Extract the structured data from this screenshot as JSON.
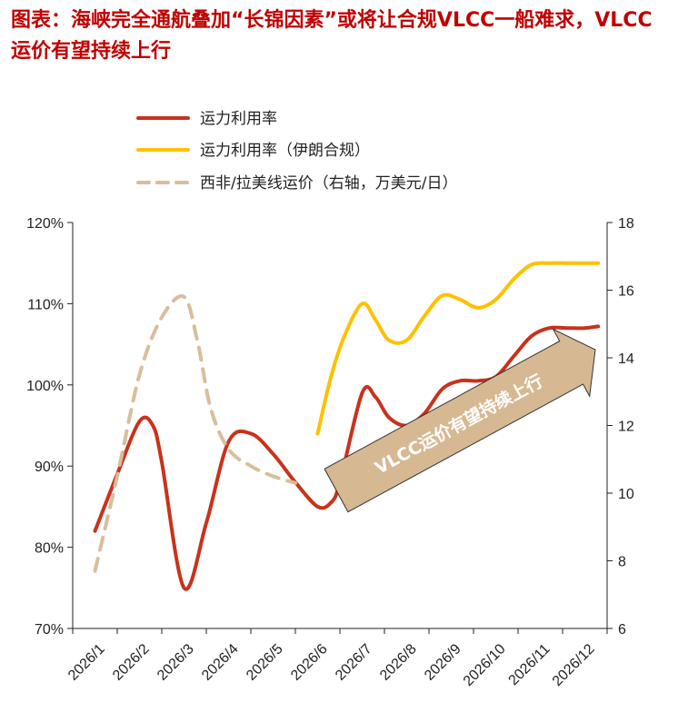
{
  "title": "图表：海峡完全通航叠加“长锦因素”或将让合规VLCC一船难求，VLCC运价有望持续上行",
  "colors": {
    "title": "#c00000",
    "series_util": "#c8321c",
    "series_iran": "#ffc000",
    "series_rate": "#d9bd9c",
    "arrow_fill": "#d6b892",
    "arrow_stroke": "#333333"
  },
  "chart_data": {
    "type": "line",
    "categories": [
      "2026/1",
      "2026/2",
      "2026/3",
      "2026/4",
      "2026/5",
      "2026/6",
      "2026/7",
      "2026/8",
      "2026/9",
      "2026/10",
      "2026/11",
      "2026/12"
    ],
    "y_left": {
      "ticks": [
        "70%",
        "80%",
        "90%",
        "100%",
        "110%",
        "120%"
      ],
      "lim": [
        70,
        120
      ],
      "unit": "%"
    },
    "y_right": {
      "ticks": [
        "6",
        "8",
        "10",
        "12",
        "14",
        "16",
        "18"
      ],
      "lim": [
        6,
        18
      ]
    },
    "series": [
      {
        "name": "运力利用率",
        "axis": "left",
        "style": "solid",
        "color": "#c8321c",
        "x": [
          0.0,
          0.5,
          1.0,
          1.3,
          1.5,
          2.0,
          2.5,
          3.0,
          3.5,
          4.0,
          4.5,
          5.0,
          5.3,
          5.5,
          6.0,
          6.3,
          6.6,
          7.0,
          7.4,
          7.8,
          8.2,
          8.6,
          9.0,
          9.4,
          9.8,
          10.2,
          10.6,
          11.0,
          11.3
        ],
        "values": [
          82,
          89,
          95.5,
          95,
          90.5,
          75,
          83,
          93,
          94,
          91.5,
          88,
          85,
          85.5,
          88,
          99,
          98.5,
          96,
          95,
          96.5,
          99.5,
          100.5,
          100.5,
          101,
          103.5,
          106,
          107,
          107,
          107,
          107.2
        ]
      },
      {
        "name": "运力利用率（伊朗合规）",
        "axis": "left",
        "style": "solid",
        "color": "#ffc000",
        "x": [
          5.0,
          5.3,
          5.6,
          6.0,
          6.3,
          6.6,
          7.0,
          7.4,
          7.8,
          8.2,
          8.6,
          9.0,
          9.4,
          9.8,
          10.2,
          10.6,
          11.0,
          11.3
        ],
        "values": [
          94,
          101,
          106,
          110,
          108,
          105.5,
          105.5,
          108.5,
          111,
          110.5,
          109.5,
          110.5,
          113,
          114.8,
          115,
          115,
          115,
          115
        ]
      },
      {
        "name": "西非/拉美线运价（右轴，万美元/日）",
        "axis": "right",
        "style": "dashed",
        "color": "#d9bd9c",
        "x": [
          0.0,
          0.5,
          1.0,
          1.5,
          2.0,
          2.3,
          2.6,
          3.0,
          3.5,
          4.0,
          4.5
        ],
        "values": [
          7.7,
          10.5,
          13.5,
          15.2,
          15.8,
          14.5,
          12.5,
          11.3,
          10.8,
          10.5,
          10.3
        ]
      }
    ],
    "annotation": "VLCC运价有望持续上行",
    "grid": false,
    "legend_position": "top-left"
  }
}
